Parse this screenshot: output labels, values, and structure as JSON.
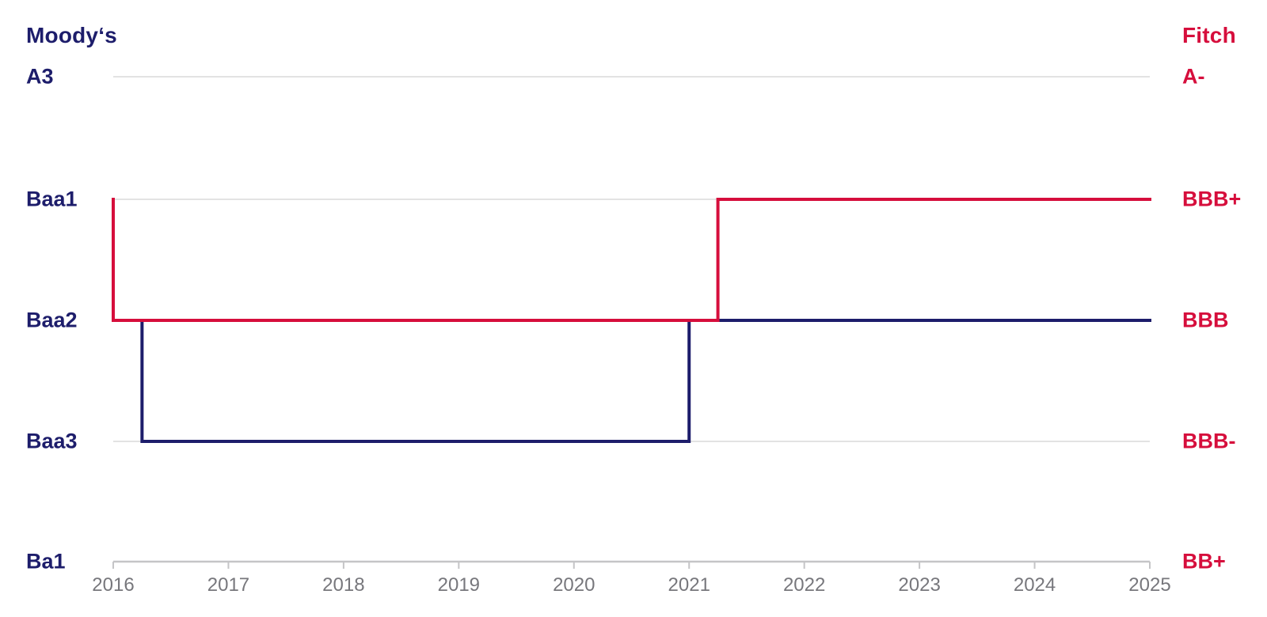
{
  "left_axis": {
    "title": "Moody‘s",
    "labels": [
      "A3",
      "Baa1",
      "Baa2",
      "Baa3",
      "Ba1"
    ]
  },
  "right_axis": {
    "title": "Fitch",
    "labels": [
      "A-",
      "BBB+",
      "BBB",
      "BBB-",
      "BB+"
    ]
  },
  "colors": {
    "navy": "#1D1D6B",
    "red": "#D60E3C",
    "gridline": "#E3E3E3",
    "axis": "#C5C5C7",
    "tick_text": "#77777C"
  },
  "chart_data": {
    "type": "line",
    "subtype": "step-after ordinal rating history, two series",
    "title": "",
    "xlabel": "",
    "ylabel_left": "Moody‘s",
    "ylabel_right": "Fitch",
    "x_range": [
      2016,
      2025
    ],
    "x_ticks": [
      2016,
      2017,
      2018,
      2019,
      2020,
      2021,
      2022,
      2023,
      2024,
      2025
    ],
    "grid": "horizontal gridlines at each rating level, x-axis ticks pointing down",
    "legend_position": "axis titles top-left (Moody's) and top-right (Fitch)",
    "rating_scale": {
      "moodys": [
        "A3",
        "Baa1",
        "Baa2",
        "Baa3",
        "Ba1"
      ],
      "fitch": [
        "A-",
        "BBB+",
        "BBB",
        "BBB-",
        "BB+"
      ]
    },
    "series": [
      {
        "name": "Moody‘s",
        "color": "#1D1D6B",
        "scale": "moodys",
        "points": [
          {
            "x": 2016.0,
            "rating": "Baa2"
          },
          {
            "x": 2016.25,
            "rating": "Baa3"
          },
          {
            "x": 2021.0,
            "rating": "Baa2"
          },
          {
            "x": 2025.0,
            "rating": "Baa2"
          }
        ]
      },
      {
        "name": "Fitch",
        "color": "#D60E3C",
        "scale": "fitch",
        "points": [
          {
            "x": 2016.0,
            "rating": "BBB+"
          },
          {
            "x": 2016.0,
            "rating": "BBB"
          },
          {
            "x": 2021.25,
            "rating": "BBB+"
          },
          {
            "x": 2025.0,
            "rating": "BBB+"
          }
        ]
      }
    ]
  }
}
